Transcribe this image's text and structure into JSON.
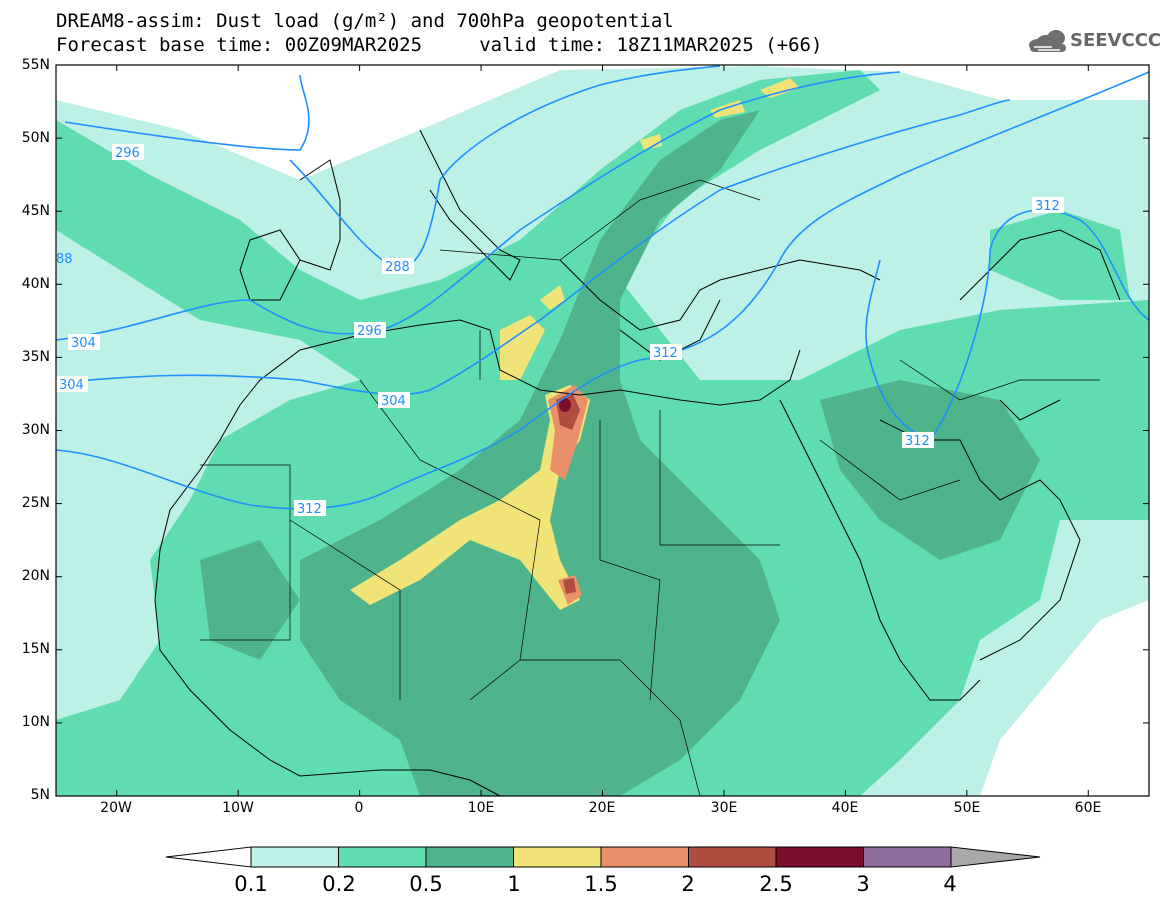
{
  "title": {
    "line1": "DREAM8-assim: Dust load (g/m²) and 700hPa geopotential",
    "line2": "Forecast base time: 00Z09MAR2025     valid time: 18Z11MAR2025 (+66)"
  },
  "logo": {
    "text": "SEEVCCC"
  },
  "map": {
    "lat_labels": [
      "55N",
      "50N",
      "45N",
      "40N",
      "35N",
      "30N",
      "25N",
      "20N",
      "15N",
      "10N",
      "5N"
    ],
    "lon_labels": [
      "20W",
      "10W",
      "0",
      "10E",
      "20E",
      "30E",
      "40E",
      "50E",
      "60E"
    ],
    "extent": {
      "lon": [
        -25,
        65
      ],
      "lat": [
        5,
        55
      ]
    }
  },
  "contours": {
    "labels": [
      "296",
      "288",
      "296",
      "304",
      "304",
      "312",
      "312",
      "312",
      "312",
      "88"
    ]
  },
  "colorbar": {
    "ticks": [
      "0.1",
      "0.2",
      "0.5",
      "1",
      "1.5",
      "2",
      "2.5",
      "3",
      "4"
    ],
    "colors": [
      "#bdf0e6",
      "#5fdcb0",
      "#4fb48c",
      "#f0e478",
      "#e8906a",
      "#b04c40",
      "#7a0e2c",
      "#8f6c9e",
      "#a8a8a8"
    ]
  },
  "colors": {
    "contour": "#1e90ff",
    "coast": "#000000"
  }
}
